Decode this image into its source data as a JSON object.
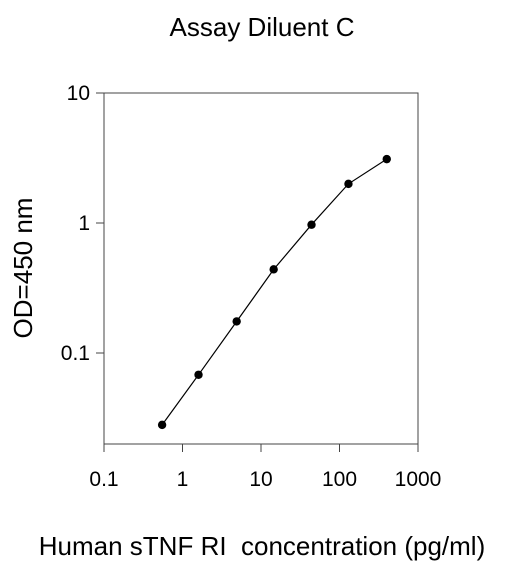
{
  "chart_data": {
    "type": "line",
    "title": "Assay Diluent C",
    "xlabel": "Human sTNF RI  concentration (pg/ml)",
    "ylabel": "OD=450 nm",
    "x_scale": "log",
    "y_scale": "log",
    "xlim": [
      0.1,
      1000
    ],
    "ylim": [
      0.02,
      10
    ],
    "x_ticks": [
      {
        "value": 0.1,
        "label": "0.1"
      },
      {
        "value": 1,
        "label": "1"
      },
      {
        "value": 10,
        "label": "10"
      },
      {
        "value": 100,
        "label": "100"
      },
      {
        "value": 1000,
        "label": "1000"
      }
    ],
    "y_ticks": [
      {
        "value": 0.1,
        "label": "0.1"
      },
      {
        "value": 1,
        "label": "1"
      },
      {
        "value": 10,
        "label": "10"
      }
    ],
    "grid": false,
    "series": [
      {
        "x": [
          0.55,
          1.6,
          4.9,
          14.5,
          44,
          130,
          400
        ],
        "y": [
          0.028,
          0.068,
          0.175,
          0.44,
          0.97,
          2.0,
          3.1
        ],
        "color": "#000000",
        "marker": "circle"
      }
    ]
  }
}
